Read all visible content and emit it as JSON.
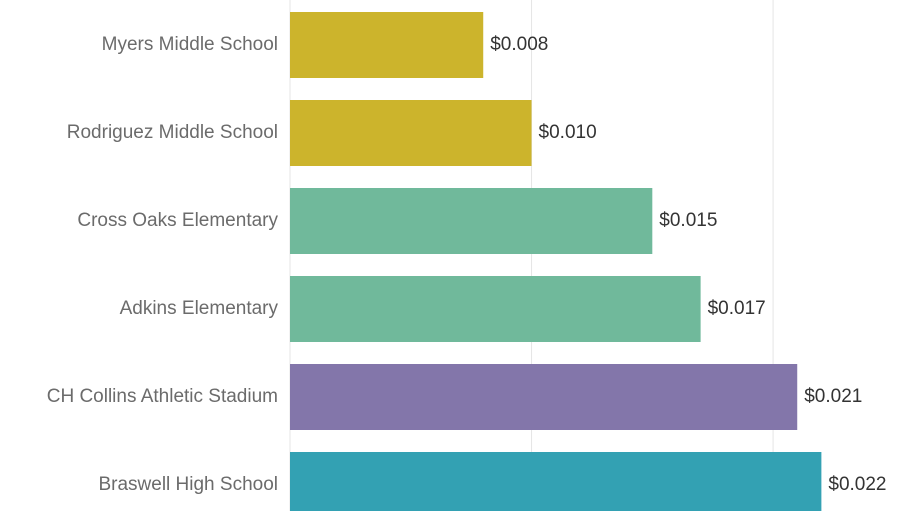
{
  "chart_data": {
    "type": "bar",
    "orientation": "horizontal",
    "categories": [
      "Myers Middle School",
      "Rodriguez Middle School",
      "Cross Oaks Elementary",
      "Adkins Elementary",
      "CH Collins Athletic Stadium",
      "Braswell High School"
    ],
    "values": [
      0.008,
      0.01,
      0.015,
      0.017,
      0.021,
      0.022
    ],
    "value_labels": [
      "$0.008",
      "$0.010",
      "$0.015",
      "$0.017",
      "$0.021",
      "$0.022"
    ],
    "colors": [
      "#ccb42c",
      "#ccb42c",
      "#70b99b",
      "#70b99b",
      "#8376aa",
      "#33a1b3"
    ],
    "xlim": [
      0,
      0.026
    ],
    "grid_lines": [
      0.01,
      0.02
    ],
    "grid": true
  }
}
